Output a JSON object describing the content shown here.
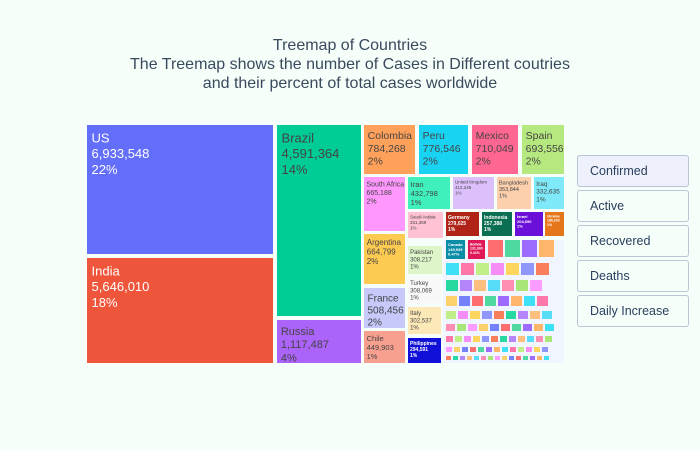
{
  "title": {
    "line1": "Treemap of Countries",
    "line2": "The Treemap shows the number of Cases in Different coutries",
    "line3": "and their percent of total cases worldwide"
  },
  "buttons": [
    {
      "label": "Confirmed",
      "active": true
    },
    {
      "label": "Active",
      "active": false
    },
    {
      "label": "Recovered",
      "active": false
    },
    {
      "label": "Deaths",
      "active": false
    },
    {
      "label": "Daily Increase",
      "active": false
    }
  ],
  "chart_data": {
    "type": "treemap",
    "metric": "Confirmed",
    "labeled": [
      {
        "name": "US",
        "value": "6,933,548",
        "pct": "22%",
        "color": "#636efa"
      },
      {
        "name": "India",
        "value": "5,646,010",
        "pct": "18%",
        "color": "#ef553b"
      },
      {
        "name": "Brazil",
        "value": "4,591,364",
        "pct": "14%",
        "color": "#00cc96"
      },
      {
        "name": "Russia",
        "value": "1,117,487",
        "pct": "4%",
        "color": "#ab63fa"
      },
      {
        "name": "Colombia",
        "value": "784,268",
        "pct": "2%",
        "color": "#ffa15a"
      },
      {
        "name": "Peru",
        "value": "776,546",
        "pct": "2%",
        "color": "#19d3f3"
      },
      {
        "name": "Mexico",
        "value": "710,049",
        "pct": "2%",
        "color": "#ff6692"
      },
      {
        "name": "Spain",
        "value": "693,556",
        "pct": "2%",
        "color": "#b6e880"
      },
      {
        "name": "South Africa",
        "value": "665,188",
        "pct": "2%",
        "color": "#ff97ff"
      },
      {
        "name": "Argentina",
        "value": "664,799",
        "pct": "2%",
        "color": "#fecb52"
      },
      {
        "name": "France",
        "value": "508,456",
        "pct": "2%",
        "color": "#c7c9fb"
      },
      {
        "name": "Chile",
        "value": "449,903",
        "pct": "1%",
        "color": "#f8a08f"
      },
      {
        "name": "Iran",
        "value": "432,798",
        "pct": "1%",
        "color": "#3ff0bc"
      },
      {
        "name": "United Kingdom",
        "value": "412,246",
        "pct": "1%",
        "color": "#dcc0fc"
      },
      {
        "name": "Bangladesh",
        "value": "353,844",
        "pct": "1%",
        "color": "#fdd0ad"
      },
      {
        "name": "Iraq",
        "value": "332,635",
        "pct": "1%",
        "color": "#7ee9f8"
      },
      {
        "name": "Saudi Arabia",
        "value": "331,359",
        "pct": "1%",
        "color": "#ffc2d4"
      },
      {
        "name": "Pakistan",
        "value": "308,217",
        "pct": "1%",
        "color": "#ddf5c8"
      },
      {
        "name": "Turkey",
        "value": "308,069",
        "pct": "1%",
        "color": "#f8f8f8"
      },
      {
        "name": "Italy",
        "value": "302,537",
        "pct": "1%",
        "color": "#fde8b8"
      },
      {
        "name": "Philippines",
        "value": "294,591",
        "pct": "1%",
        "color": "#1010d8"
      },
      {
        "name": "Germany",
        "value": "279,025",
        "pct": "1%",
        "color": "#b02418"
      },
      {
        "name": "Indonesia",
        "value": "257,388",
        "pct": "1%",
        "color": "#0a6e52"
      },
      {
        "name": "Israel",
        "value": "204,690",
        "pct": "1%",
        "color": "#6a10d8"
      },
      {
        "name": "Ukraine",
        "value": "186,303",
        "pct": "1%",
        "color": "#e6761a"
      },
      {
        "name": "Canada",
        "value": "149,939",
        "pct": "0.47%",
        "color": "#0b8da8"
      },
      {
        "name": "Bolivia",
        "value": "131,990",
        "pct": "0.41%",
        "color": "#e01858"
      }
    ],
    "small_tile_colors": [
      "#ff6e6e",
      "#4fd9a0",
      "#9d6bff",
      "#ffb56a",
      "#3ee0f5",
      "#ff77a8",
      "#c0ef88",
      "#f68df6",
      "#ffd55e",
      "#8f97fb",
      "#f97e5c",
      "#27d9a0",
      "#b585fb",
      "#fdbf7d",
      "#57ddf7",
      "#ff8fb2",
      "#a9e678",
      "#ff9cff",
      "#fcd06a",
      "#7481fb"
    ]
  }
}
